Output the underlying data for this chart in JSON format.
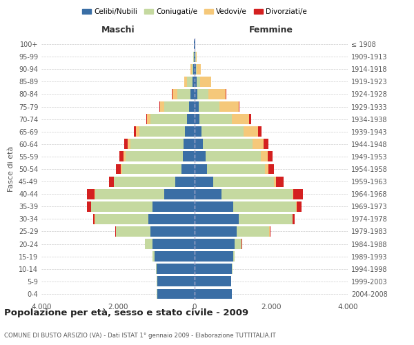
{
  "age_groups": [
    "0-4",
    "5-9",
    "10-14",
    "15-19",
    "20-24",
    "25-29",
    "30-34",
    "35-39",
    "40-44",
    "45-49",
    "50-54",
    "55-59",
    "60-64",
    "65-69",
    "70-74",
    "75-79",
    "80-84",
    "85-89",
    "90-94",
    "95-99",
    "100+"
  ],
  "birth_years": [
    "2004-2008",
    "1999-2003",
    "1994-1998",
    "1989-1993",
    "1984-1988",
    "1979-1983",
    "1974-1978",
    "1969-1973",
    "1964-1968",
    "1959-1963",
    "1954-1958",
    "1949-1953",
    "1944-1948",
    "1939-1943",
    "1934-1938",
    "1929-1933",
    "1924-1928",
    "1919-1923",
    "1914-1918",
    "1909-1913",
    "≤ 1908"
  ],
  "maschi": {
    "celibi": [
      980,
      980,
      1000,
      1050,
      1100,
      1150,
      1200,
      1100,
      800,
      500,
      350,
      310,
      280,
      250,
      200,
      150,
      100,
      60,
      30,
      15,
      10
    ],
    "coniugati": [
      5,
      5,
      10,
      50,
      200,
      900,
      1400,
      1600,
      1800,
      1600,
      1550,
      1500,
      1400,
      1200,
      950,
      650,
      350,
      130,
      40,
      15,
      5
    ],
    "vedovi": [
      0,
      0,
      0,
      0,
      0,
      2,
      5,
      5,
      10,
      15,
      30,
      40,
      60,
      80,
      90,
      100,
      130,
      80,
      30,
      8,
      2
    ],
    "divorziati": [
      0,
      0,
      0,
      2,
      5,
      20,
      50,
      100,
      200,
      120,
      130,
      120,
      100,
      60,
      30,
      15,
      10,
      5,
      3,
      2,
      1
    ]
  },
  "femmine": {
    "nubili": [
      970,
      960,
      980,
      1000,
      1050,
      1100,
      1150,
      1000,
      700,
      480,
      330,
      280,
      220,
      180,
      130,
      100,
      80,
      50,
      30,
      20,
      10
    ],
    "coniugate": [
      3,
      3,
      8,
      40,
      180,
      850,
      1400,
      1650,
      1850,
      1600,
      1500,
      1450,
      1300,
      1100,
      850,
      550,
      280,
      100,
      30,
      10,
      5
    ],
    "vedove": [
      0,
      0,
      0,
      0,
      2,
      5,
      10,
      15,
      30,
      50,
      100,
      180,
      280,
      380,
      450,
      500,
      450,
      280,
      100,
      20,
      5
    ],
    "divorziate": [
      0,
      0,
      0,
      2,
      5,
      20,
      60,
      130,
      250,
      200,
      150,
      130,
      120,
      80,
      50,
      25,
      15,
      10,
      5,
      2,
      1
    ]
  },
  "colors": {
    "celibi_nubili": "#3A6EA5",
    "coniugati": "#C5D9A0",
    "vedovi": "#F5C87A",
    "divorziati": "#D42020"
  },
  "xlim": 4000,
  "title": "Popolazione per età, sesso e stato civile - 2009",
  "subtitle": "COMUNE DI BUSTO ARSIZIO (VA) - Dati ISTAT 1° gennaio 2009 - Elaborazione TUTTITALIA.IT",
  "ylabel_left": "Fasce di età",
  "xlabel_left": "Maschi",
  "xlabel_right": "Femmine"
}
